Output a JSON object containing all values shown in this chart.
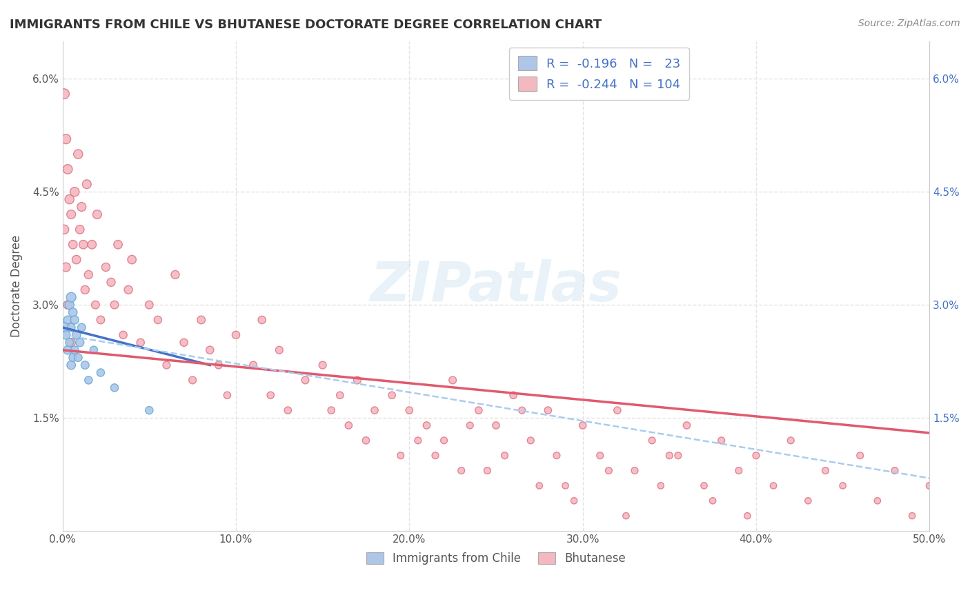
{
  "title": "IMMIGRANTS FROM CHILE VS BHUTANESE DOCTORATE DEGREE CORRELATION CHART",
  "source": "Source: ZipAtlas.com",
  "ylabel": "Doctorate Degree",
  "xlabel": "",
  "xlim": [
    0.0,
    0.5
  ],
  "ylim": [
    0.0,
    0.065
  ],
  "yticks": [
    0.0,
    0.015,
    0.03,
    0.045,
    0.06
  ],
  "ytick_labels_left": [
    "",
    "1.5%",
    "3.0%",
    "4.5%",
    "6.0%"
  ],
  "ytick_labels_right": [
    "",
    "1.5%",
    "3.0%",
    "4.5%",
    "6.0%"
  ],
  "xticks": [
    0.0,
    0.1,
    0.2,
    0.3,
    0.4,
    0.5
  ],
  "xtick_labels": [
    "0.0%",
    "10.0%",
    "20.0%",
    "30.0%",
    "40.0%",
    "50.0%"
  ],
  "legend_r_chile": "-0.196",
  "legend_n_chile": "23",
  "legend_r_bhutan": "-0.244",
  "legend_n_bhutan": "104",
  "chile_color": "#aec6e8",
  "chile_edge_color": "#6baed6",
  "bhutan_color": "#f4b8c1",
  "bhutan_edge_color": "#e07b8a",
  "chile_line_color": "#4472c4",
  "bhutan_line_color": "#e05a6e",
  "dashed_line_color": "#aaccee",
  "watermark": "ZIPatlas",
  "background_color": "#ffffff",
  "grid_color": "#dddddd",
  "chile_line_x0": 0.0,
  "chile_line_y0": 0.027,
  "chile_line_x1": 0.085,
  "chile_line_y1": 0.022,
  "bhutan_line_x0": 0.0,
  "bhutan_line_y0": 0.024,
  "bhutan_line_x1": 0.5,
  "bhutan_line_y1": 0.013,
  "dash_line_x0": 0.0,
  "dash_line_y0": 0.026,
  "dash_line_x1": 0.5,
  "dash_line_y1": 0.007,
  "chile_x": [
    0.001,
    0.002,
    0.003,
    0.003,
    0.004,
    0.004,
    0.005,
    0.005,
    0.005,
    0.006,
    0.006,
    0.007,
    0.007,
    0.008,
    0.009,
    0.01,
    0.011,
    0.013,
    0.015,
    0.018,
    0.022,
    0.03,
    0.05
  ],
  "chile_y": [
    0.027,
    0.026,
    0.024,
    0.028,
    0.025,
    0.03,
    0.022,
    0.027,
    0.031,
    0.023,
    0.029,
    0.024,
    0.028,
    0.026,
    0.023,
    0.025,
    0.027,
    0.022,
    0.02,
    0.024,
    0.021,
    0.019,
    0.016
  ],
  "chile_size": [
    120,
    80,
    80,
    70,
    70,
    90,
    80,
    70,
    100,
    70,
    80,
    70,
    75,
    80,
    70,
    75,
    70,
    70,
    65,
    65,
    65,
    65,
    65
  ],
  "bhutan_x": [
    0.001,
    0.001,
    0.002,
    0.002,
    0.003,
    0.003,
    0.004,
    0.005,
    0.005,
    0.006,
    0.007,
    0.008,
    0.009,
    0.01,
    0.011,
    0.012,
    0.013,
    0.014,
    0.015,
    0.017,
    0.019,
    0.02,
    0.022,
    0.025,
    0.028,
    0.03,
    0.032,
    0.035,
    0.038,
    0.04,
    0.045,
    0.05,
    0.055,
    0.06,
    0.065,
    0.07,
    0.075,
    0.08,
    0.085,
    0.09,
    0.095,
    0.1,
    0.11,
    0.115,
    0.12,
    0.125,
    0.13,
    0.14,
    0.15,
    0.155,
    0.16,
    0.165,
    0.17,
    0.175,
    0.18,
    0.19,
    0.195,
    0.2,
    0.21,
    0.22,
    0.225,
    0.23,
    0.24,
    0.25,
    0.255,
    0.26,
    0.27,
    0.28,
    0.29,
    0.3,
    0.31,
    0.32,
    0.33,
    0.34,
    0.35,
    0.36,
    0.37,
    0.38,
    0.39,
    0.4,
    0.41,
    0.42,
    0.43,
    0.44,
    0.45,
    0.46,
    0.47,
    0.48,
    0.49,
    0.5,
    0.205,
    0.215,
    0.235,
    0.245,
    0.265,
    0.275,
    0.285,
    0.295,
    0.315,
    0.325,
    0.345,
    0.355,
    0.375,
    0.395
  ],
  "bhutan_y": [
    0.058,
    0.04,
    0.052,
    0.035,
    0.048,
    0.03,
    0.044,
    0.042,
    0.025,
    0.038,
    0.045,
    0.036,
    0.05,
    0.04,
    0.043,
    0.038,
    0.032,
    0.046,
    0.034,
    0.038,
    0.03,
    0.042,
    0.028,
    0.035,
    0.033,
    0.03,
    0.038,
    0.026,
    0.032,
    0.036,
    0.025,
    0.03,
    0.028,
    0.022,
    0.034,
    0.025,
    0.02,
    0.028,
    0.024,
    0.022,
    0.018,
    0.026,
    0.022,
    0.028,
    0.018,
    0.024,
    0.016,
    0.02,
    0.022,
    0.016,
    0.018,
    0.014,
    0.02,
    0.012,
    0.016,
    0.018,
    0.01,
    0.016,
    0.014,
    0.012,
    0.02,
    0.008,
    0.016,
    0.014,
    0.01,
    0.018,
    0.012,
    0.016,
    0.006,
    0.014,
    0.01,
    0.016,
    0.008,
    0.012,
    0.01,
    0.014,
    0.006,
    0.012,
    0.008,
    0.01,
    0.006,
    0.012,
    0.004,
    0.008,
    0.006,
    0.01,
    0.004,
    0.008,
    0.002,
    0.006,
    0.012,
    0.01,
    0.014,
    0.008,
    0.016,
    0.006,
    0.01,
    0.004,
    0.008,
    0.002,
    0.006,
    0.01,
    0.004,
    0.002
  ],
  "bhutan_size": [
    110,
    90,
    100,
    85,
    95,
    80,
    90,
    85,
    75,
    80,
    90,
    80,
    90,
    80,
    85,
    80,
    75,
    85,
    75,
    80,
    70,
    85,
    70,
    75,
    75,
    70,
    80,
    65,
    75,
    80,
    65,
    70,
    65,
    60,
    75,
    65,
    60,
    70,
    65,
    60,
    55,
    65,
    60,
    65,
    55,
    60,
    55,
    60,
    60,
    55,
    55,
    55,
    60,
    55,
    55,
    55,
    50,
    55,
    55,
    50,
    60,
    50,
    55,
    55,
    50,
    55,
    50,
    55,
    45,
    55,
    50,
    55,
    50,
    50,
    50,
    55,
    45,
    50,
    50,
    50,
    45,
    50,
    45,
    50,
    45,
    50,
    45,
    50,
    45,
    50,
    50,
    50,
    50,
    50,
    50,
    45,
    50,
    45,
    50,
    45,
    45,
    50,
    45,
    45
  ]
}
